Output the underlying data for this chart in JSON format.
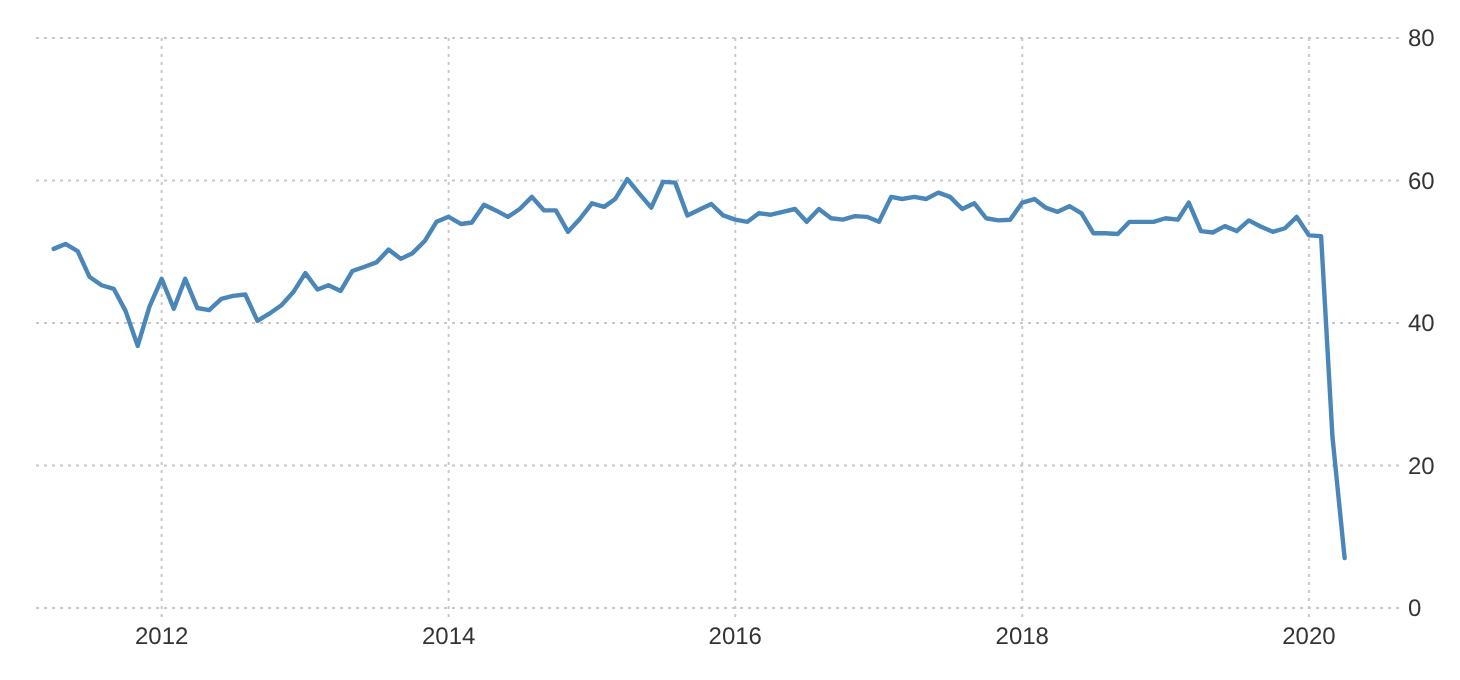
{
  "chart_data": {
    "type": "line",
    "x": [
      "2011-04",
      "2011-05",
      "2011-06",
      "2011-07",
      "2011-08",
      "2011-09",
      "2011-10",
      "2011-11",
      "2011-12",
      "2012-01",
      "2012-02",
      "2012-03",
      "2012-04",
      "2012-05",
      "2012-06",
      "2012-07",
      "2012-08",
      "2012-09",
      "2012-10",
      "2012-11",
      "2012-12",
      "2013-01",
      "2013-02",
      "2013-03",
      "2013-04",
      "2013-05",
      "2013-06",
      "2013-07",
      "2013-08",
      "2013-09",
      "2013-10",
      "2013-11",
      "2013-12",
      "2014-01",
      "2014-02",
      "2014-03",
      "2014-04",
      "2014-05",
      "2014-06",
      "2014-07",
      "2014-08",
      "2014-09",
      "2014-10",
      "2014-11",
      "2014-12",
      "2015-01",
      "2015-02",
      "2015-03",
      "2015-04",
      "2015-05",
      "2015-06",
      "2015-07",
      "2015-08",
      "2015-09",
      "2015-10",
      "2015-11",
      "2015-12",
      "2016-01",
      "2016-02",
      "2016-03",
      "2016-04",
      "2016-05",
      "2016-06",
      "2016-07",
      "2016-08",
      "2016-09",
      "2016-10",
      "2016-11",
      "2016-12",
      "2017-01",
      "2017-02",
      "2017-03",
      "2017-04",
      "2017-05",
      "2017-06",
      "2017-07",
      "2017-08",
      "2017-09",
      "2017-10",
      "2017-11",
      "2017-12",
      "2018-01",
      "2018-02",
      "2018-03",
      "2018-04",
      "2018-05",
      "2018-06",
      "2018-07",
      "2018-08",
      "2018-09",
      "2018-10",
      "2018-11",
      "2018-12",
      "2019-01",
      "2019-02",
      "2019-03",
      "2019-04",
      "2019-05",
      "2019-06",
      "2019-07",
      "2019-08",
      "2019-09",
      "2019-10",
      "2019-11",
      "2019-12",
      "2020-01",
      "2020-02",
      "2020-03",
      "2020-04"
    ],
    "series": [
      {
        "color": "#4a86b8",
        "values": [
          50.4,
          51.1,
          50.1,
          46.5,
          45.3,
          44.8,
          41.7,
          36.8,
          42.3,
          46.2,
          42.0,
          46.2,
          42.1,
          41.8,
          43.4,
          43.8,
          44.0,
          40.3,
          41.3,
          42.5,
          44.3,
          47.0,
          44.7,
          45.3,
          44.5,
          47.3,
          47.9,
          48.5,
          50.3,
          49.0,
          49.8,
          51.5,
          54.2,
          54.9,
          53.9,
          54.1,
          56.6,
          55.8,
          54.9,
          56.0,
          57.7,
          55.8,
          55.8,
          52.8,
          54.6,
          56.8,
          56.3,
          57.4,
          60.2,
          58.2,
          56.2,
          59.8,
          59.7,
          55.1,
          55.9,
          56.7,
          55.1,
          54.5,
          54.2,
          55.4,
          55.2,
          55.6,
          56.0,
          54.2,
          56.0,
          54.7,
          54.5,
          55.0,
          54.9,
          54.2,
          57.7,
          57.4,
          57.7,
          57.4,
          58.3,
          57.7,
          56.0,
          56.8,
          54.7,
          54.4,
          54.5,
          56.9,
          57.4,
          56.2,
          55.6,
          56.4,
          55.4,
          52.6,
          52.6,
          52.5,
          54.2,
          54.2,
          54.2,
          54.7,
          54.5,
          56.9,
          52.9,
          52.7,
          53.6,
          52.9,
          54.4,
          53.5,
          52.8,
          53.3,
          54.9,
          52.3,
          52.2,
          24,
          7.0
        ]
      }
    ],
    "xlim": [
      "2011-02-15",
      "2020-08-20"
    ],
    "xticks": [
      {
        "value": "2012",
        "label": "2012"
      },
      {
        "value": "2014",
        "label": "2014"
      },
      {
        "value": "2016",
        "label": "2016"
      },
      {
        "value": "2018",
        "label": "2018"
      },
      {
        "value": "2020",
        "label": "2020"
      }
    ],
    "ylim": [
      0,
      80
    ],
    "yticks": [
      0,
      20,
      40,
      60,
      80
    ],
    "grid": true,
    "marker": "none",
    "line_style": "solid"
  }
}
